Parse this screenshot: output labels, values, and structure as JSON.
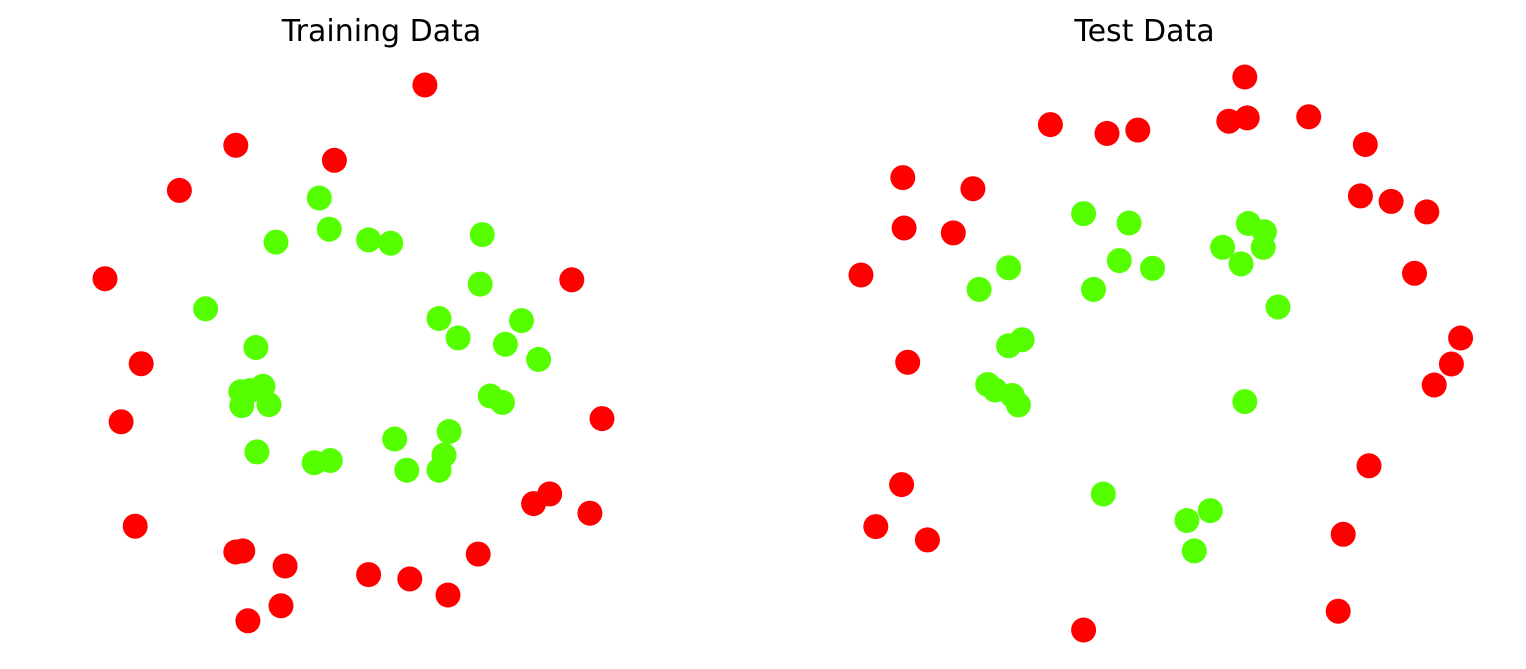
{
  "chart_data": [
    {
      "type": "scatter",
      "title": "Training Data",
      "axes_visible": false,
      "grid": false,
      "colors": {
        "class_0": "#ff0000",
        "class_1": "#55ff00"
      },
      "xlim": [
        0,
        1
      ],
      "ylim": [
        0,
        1
      ],
      "series": [
        {
          "class": 0,
          "color": "#ff0000",
          "points": [
            [
              0.636,
              1.0
            ],
            [
              0.26,
              0.888
            ],
            [
              0.456,
              0.86
            ],
            [
              0.148,
              0.804
            ],
            [
              0.0,
              0.64
            ],
            [
              0.928,
              0.638
            ],
            [
              0.072,
              0.482
            ],
            [
              0.032,
              0.374
            ],
            [
              0.988,
              0.38
            ],
            [
              0.06,
              0.18
            ],
            [
              0.884,
              0.24
            ],
            [
              0.852,
              0.222
            ],
            [
              0.964,
              0.204
            ],
            [
              0.26,
              0.132
            ],
            [
              0.274,
              0.134
            ],
            [
              0.358,
              0.106
            ],
            [
              0.524,
              0.09
            ],
            [
              0.606,
              0.082
            ],
            [
              0.742,
              0.128
            ],
            [
              0.682,
              0.052
            ],
            [
              0.35,
              0.032
            ],
            [
              0.284,
              0.004
            ]
          ]
        },
        {
          "class": 1,
          "color": "#55ff00",
          "points": [
            [
              0.426,
              0.79
            ],
            [
              0.446,
              0.732
            ],
            [
              0.34,
              0.708
            ],
            [
              0.524,
              0.712
            ],
            [
              0.568,
              0.706
            ],
            [
              0.75,
              0.722
            ],
            [
              0.746,
              0.63
            ],
            [
              0.2,
              0.584
            ],
            [
              0.664,
              0.566
            ],
            [
              0.702,
              0.53
            ],
            [
              0.828,
              0.562
            ],
            [
              0.796,
              0.518
            ],
            [
              0.3,
              0.512
            ],
            [
              0.862,
              0.49
            ],
            [
              0.27,
              0.43
            ],
            [
              0.288,
              0.432
            ],
            [
              0.272,
              0.404
            ],
            [
              0.326,
              0.406
            ],
            [
              0.314,
              0.44
            ],
            [
              0.766,
              0.422
            ],
            [
              0.79,
              0.41
            ],
            [
              0.684,
              0.356
            ],
            [
              0.576,
              0.342
            ],
            [
              0.302,
              0.318
            ],
            [
              0.416,
              0.298
            ],
            [
              0.448,
              0.302
            ],
            [
              0.674,
              0.312
            ],
            [
              0.6,
              0.284
            ],
            [
              0.664,
              0.284
            ]
          ]
        }
      ]
    },
    {
      "type": "scatter",
      "title": "Test Data",
      "axes_visible": false,
      "grid": false,
      "colors": {
        "class_0": "#ff0000",
        "class_1": "#55ff00"
      },
      "xlim": [
        0,
        1
      ],
      "ylim": [
        0,
        1
      ],
      "series": [
        {
          "class": 0,
          "color": "#ff0000",
          "points": [
            [
              0.624,
              1.0
            ],
            [
              0.308,
              0.914
            ],
            [
              0.4,
              0.898
            ],
            [
              0.45,
              0.904
            ],
            [
              0.598,
              0.92
            ],
            [
              0.628,
              0.926
            ],
            [
              0.728,
              0.928
            ],
            [
              0.82,
              0.878
            ],
            [
              0.068,
              0.818
            ],
            [
              0.182,
              0.798
            ],
            [
              0.812,
              0.785
            ],
            [
              0.862,
              0.775
            ],
            [
              0.92,
              0.756
            ],
            [
              0.07,
              0.727
            ],
            [
              0.15,
              0.718
            ],
            [
              0.0,
              0.642
            ],
            [
              0.9,
              0.645
            ],
            [
              0.975,
              0.528
            ],
            [
              0.96,
              0.481
            ],
            [
              0.932,
              0.443
            ],
            [
              0.076,
              0.484
            ],
            [
              0.826,
              0.297
            ],
            [
              0.066,
              0.263
            ],
            [
              0.024,
              0.187
            ],
            [
              0.108,
              0.163
            ],
            [
              0.784,
              0.173
            ],
            [
              0.362,
              0.0
            ],
            [
              0.776,
              0.034
            ]
          ]
        },
        {
          "class": 1,
          "color": "#55ff00",
          "points": [
            [
              0.362,
              0.753
            ],
            [
              0.436,
              0.736
            ],
            [
              0.588,
              0.692
            ],
            [
              0.63,
              0.735
            ],
            [
              0.656,
              0.72
            ],
            [
              0.654,
              0.692
            ],
            [
              0.24,
              0.655
            ],
            [
              0.42,
              0.668
            ],
            [
              0.474,
              0.654
            ],
            [
              0.618,
              0.662
            ],
            [
              0.192,
              0.616
            ],
            [
              0.378,
              0.616
            ],
            [
              0.678,
              0.584
            ],
            [
              0.262,
              0.525
            ],
            [
              0.24,
              0.514
            ],
            [
              0.218,
              0.434
            ],
            [
              0.246,
              0.424
            ],
            [
              0.256,
              0.407
            ],
            [
              0.624,
              0.413
            ],
            [
              0.206,
              0.444
            ],
            [
              0.394,
              0.246
            ],
            [
              0.53,
              0.198
            ],
            [
              0.568,
              0.216
            ],
            [
              0.542,
              0.143
            ]
          ]
        }
      ]
    }
  ]
}
